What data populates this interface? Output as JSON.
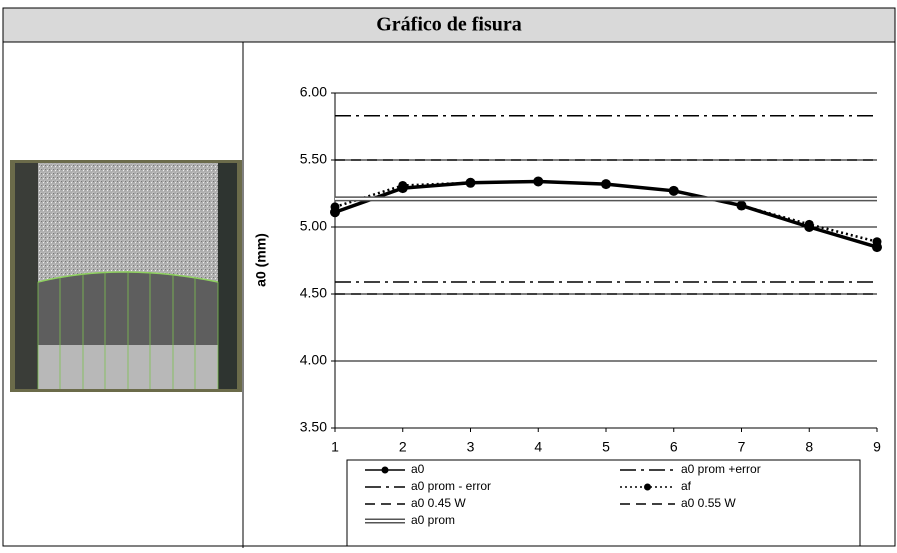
{
  "header": {
    "title": "Gráfico de fisura"
  },
  "chart_data": {
    "type": "line",
    "y_label": "a0 (mm)",
    "x": [
      1,
      2,
      3,
      4,
      5,
      6,
      7,
      8,
      9
    ],
    "xlim": [
      1,
      9
    ],
    "xticks": [
      1,
      2,
      3,
      4,
      5,
      6,
      7,
      8,
      9
    ],
    "ylim": [
      3.5,
      6
    ],
    "yticks": [
      {
        "value": 3.5,
        "label": "3.50"
      },
      {
        "value": 4,
        "label": "4.00"
      },
      {
        "value": 4.5,
        "label": "4.50"
      },
      {
        "value": 5,
        "label": "5.00"
      },
      {
        "value": 5.5,
        "label": "5.50"
      },
      {
        "value": 6,
        "label": "6.00"
      }
    ],
    "grid": true,
    "series": [
      {
        "name": "a0",
        "color": "#000000",
        "style": "solid",
        "marker": true,
        "values": [
          5.11,
          5.29,
          5.33,
          5.34,
          5.32,
          5.27,
          5.16,
          5.0,
          4.85
        ]
      },
      {
        "name": "a0 prom +error",
        "color": "#000000",
        "style": "dashdot",
        "value": 5.83
      },
      {
        "name": "a0 prom - error",
        "color": "#000000",
        "style": "dashdot",
        "value": 4.59
      },
      {
        "name": "af",
        "color": "#000000",
        "style": "dotted",
        "marker": true,
        "values": [
          5.15,
          5.31,
          5.33,
          5.34,
          5.32,
          5.27,
          5.16,
          5.02,
          4.89
        ]
      },
      {
        "name": "a0 0.45 W",
        "color": "#000000",
        "style": "dashed",
        "value": 4.5
      },
      {
        "name": "a0 0.55 W",
        "color": "#000000",
        "style": "dashed",
        "value": 5.5
      },
      {
        "name": "a0 prom",
        "color": "#555555",
        "style": "double",
        "value": 5.21
      }
    ]
  }
}
